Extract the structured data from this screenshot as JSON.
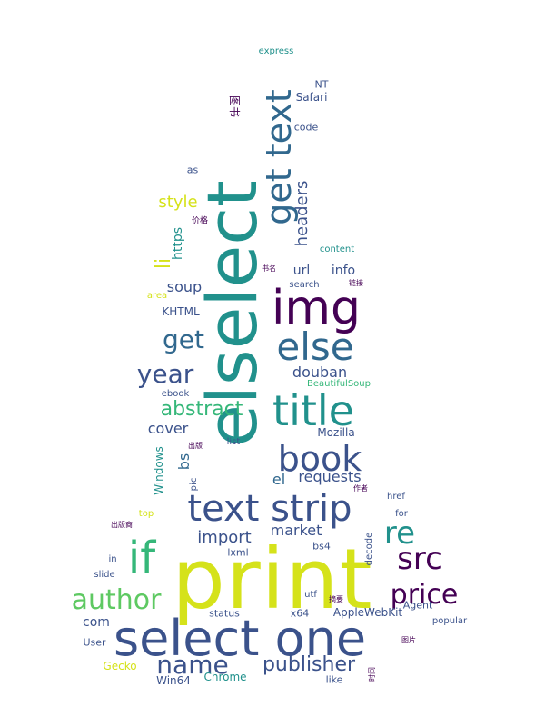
{
  "title": "Word cloud",
  "palette": {
    "purple": "#440154",
    "indigo": "#3b528b",
    "teal": "#21918c",
    "green": "#5ec962",
    "yellow": "#d5e21a",
    "navy": "#31688e",
    "seafoam": "#35b779"
  },
  "words": {
    "print": "print",
    "select_one": "select one",
    "elselect": "elselect",
    "text_strip": "text strip",
    "img": "img",
    "title": "title",
    "else": "else",
    "book": "book",
    "get_text": "get text",
    "if": "if",
    "src": "src",
    "re": "re",
    "price": "price",
    "author": "author",
    "year": "year",
    "name": "name",
    "publisher": "publisher",
    "abstract": "abstract",
    "get": "get",
    "import": "import",
    "market": "market",
    "headers": "headers",
    "style": "style",
    "douban": "douban",
    "url": "url",
    "info": "info",
    "soup": "soup",
    "cover": "cover",
    "requests": "requests",
    "el": "el",
    "bs": "bs",
    "com": "com",
    "https": "https",
    "li": "li",
    "Mozilla": "Mozilla",
    "Windows": "Windows",
    "AppleWebKit": "AppleWebKit",
    "Chrome": "Chrome",
    "Safari": "Safari",
    "KHTML": "KHTML",
    "Gecko": "Gecko",
    "Win64": "Win64",
    "x64": "x64",
    "NT": "NT",
    "code": "code",
    "as": "as",
    "express": "express",
    "content": "content",
    "search": "search",
    "area": "area",
    "ebook": "ebook",
    "BeautifulSoup": "BeautifulSoup",
    "list": "list",
    "pic": "pic",
    "top": "top",
    "href": "href",
    "for": "for",
    "in": "in",
    "slide": "slide",
    "lxml": "lxml",
    "bs4": "bs4",
    "decode": "decode",
    "utf": "utf",
    "Agent": "Agent",
    "popular": "popular",
    "status": "status",
    "User": "User",
    "like": "like",
    "tushu": "图书",
    "jiage": "价格",
    "shuming": "书名",
    "lianjie": "链接",
    "chuban": "出版",
    "zuozhe": "作者",
    "chubanshe": "出版商",
    "zhaiyao": "摘要",
    "tupian": "图片",
    "shijian": "时间"
  }
}
